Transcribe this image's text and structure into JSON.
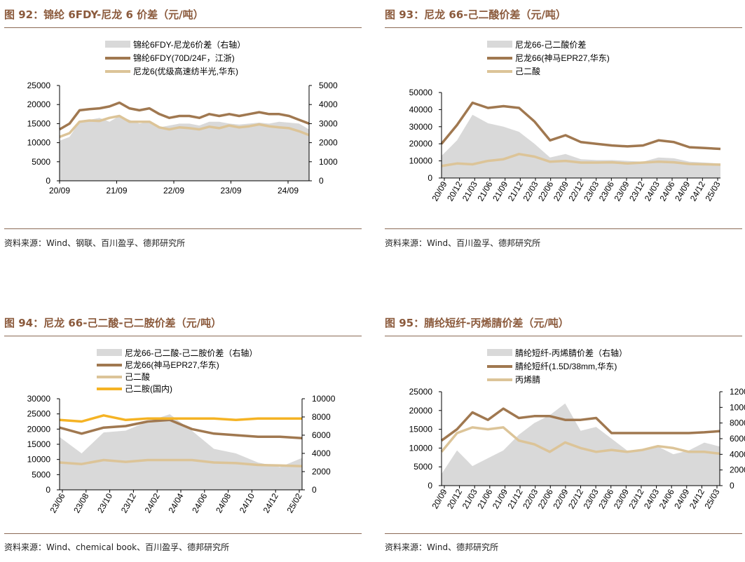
{
  "panels": [
    {
      "id": "p92",
      "title": "图 92：锦纶 6FDY-尼龙 6 价差（元/吨）",
      "source": "资料来源：Wind、钢联、百川盈孚、德邦研究所",
      "chart_data": {
        "type": "area",
        "legend": [
          {
            "label": "锦纶6FDY-尼龙6价差（右轴）",
            "kind": "area",
            "color": "#d9d9d9"
          },
          {
            "label": "锦纶6FDY(70D/24F，江浙)",
            "kind": "line",
            "color": "#a07850"
          },
          {
            "label": "尼龙6(优级高速纺半光,华东)",
            "kind": "line",
            "color": "#dcc498"
          }
        ],
        "x_ticks": [
          "20/09",
          "21/09",
          "22/09",
          "23/09",
          "24/09"
        ],
        "y_left": {
          "min": 0,
          "max": 25000,
          "ticks": [
            0,
            5000,
            10000,
            15000,
            20000,
            25000
          ]
        },
        "y_right": {
          "min": 0,
          "max": 5000,
          "ticks": [
            0,
            1000,
            2000,
            3000,
            4000,
            5000
          ]
        },
        "x_range": [
          0,
          50
        ],
        "series": [
          {
            "name": "锦纶6FDY-尼龙6价差（右轴）",
            "axis": "right",
            "kind": "area",
            "x": [
              0,
              2,
              4,
              6,
              8,
              10,
              12,
              14,
              16,
              18,
              20,
              22,
              24,
              26,
              28,
              30,
              32,
              34,
              36,
              38,
              40,
              42,
              44,
              46,
              48,
              50
            ],
            "y": [
              2100,
              2300,
              3100,
              3200,
              3300,
              3100,
              3400,
              3200,
              3000,
              3100,
              2800,
              2900,
              3000,
              3000,
              2900,
              3100,
              3100,
              3000,
              2950,
              3000,
              3050,
              3000,
              3100,
              3050,
              3000,
              2700
            ]
          },
          {
            "name": "锦纶6FDY(70D/24F，江浙)",
            "axis": "left",
            "kind": "line",
            "x": [
              0,
              2,
              4,
              6,
              8,
              10,
              12,
              14,
              16,
              18,
              20,
              22,
              24,
              26,
              28,
              30,
              32,
              34,
              36,
              38,
              40,
              42,
              44,
              46,
              48,
              50
            ],
            "y": [
              13500,
              15000,
              18500,
              18800,
              19000,
              19500,
              20500,
              19000,
              18500,
              19000,
              17500,
              16500,
              17000,
              17000,
              16500,
              17500,
              17000,
              17500,
              17000,
              17500,
              18000,
              17500,
              17500,
              17000,
              16000,
              15000
            ]
          },
          {
            "name": "尼龙6(优级高速纺半光,华东)",
            "axis": "left",
            "kind": "line",
            "x": [
              0,
              2,
              4,
              6,
              8,
              10,
              12,
              14,
              16,
              18,
              20,
              22,
              24,
              26,
              28,
              30,
              32,
              34,
              36,
              38,
              40,
              42,
              44,
              46,
              48,
              50
            ],
            "y": [
              11500,
              12500,
              15500,
              15800,
              15700,
              16500,
              17000,
              15500,
              15500,
              15500,
              14000,
              13500,
              14000,
              13800,
              13500,
              14200,
              13800,
              14500,
              14000,
              14300,
              14800,
              14300,
              14000,
              13800,
              13000,
              12000
            ]
          }
        ]
      }
    },
    {
      "id": "p93",
      "title": "图 93：尼龙 66-己二酸价差（元/吨）",
      "source": "资料来源：Wind、百川盈孚、德邦研究所",
      "chart_data": {
        "type": "area",
        "legend": [
          {
            "label": "尼龙66-己二酸价差",
            "kind": "area",
            "color": "#d9d9d9"
          },
          {
            "label": "尼龙66(神马EPR27,华东)",
            "kind": "line",
            "color": "#a07850"
          },
          {
            "label": "己二酸",
            "kind": "line",
            "color": "#dcc498"
          }
        ],
        "x_ticks": [
          "20/09",
          "20/12",
          "21/03",
          "21/06",
          "21/09",
          "21/12",
          "22/03",
          "22/06",
          "22/09",
          "22/12",
          "23/03",
          "23/06",
          "23/09",
          "23/12",
          "24/03",
          "24/06",
          "24/09",
          "24/12",
          "25/03"
        ],
        "y_left": {
          "min": 0,
          "max": 50000,
          "ticks": [
            0,
            10000,
            20000,
            30000,
            40000,
            50000
          ]
        },
        "x_range": [
          0,
          54
        ],
        "series": [
          {
            "name": "尼龙66-己二酸价差",
            "axis": "left",
            "kind": "area",
            "x": [
              0,
              3,
              6,
              9,
              12,
              15,
              18,
              21,
              24,
              27,
              30,
              33,
              36,
              39,
              42,
              45,
              48,
              51,
              54
            ],
            "y": [
              13000,
              22000,
              37000,
              32000,
              30000,
              27000,
              20000,
              12000,
              14000,
              11000,
              10500,
              10500,
              10000,
              9500,
              12000,
              11500,
              9500,
              9000,
              8500
            ]
          },
          {
            "name": "尼龙66(神马EPR27,华东)",
            "axis": "left",
            "kind": "line",
            "x": [
              0,
              3,
              6,
              9,
              12,
              15,
              18,
              21,
              24,
              27,
              30,
              33,
              36,
              39,
              42,
              45,
              48,
              51,
              54
            ],
            "y": [
              20000,
              31000,
              44000,
              41000,
              42000,
              41000,
              33000,
              22000,
              25000,
              21000,
              20000,
              19000,
              18500,
              19000,
              22000,
              21000,
              18000,
              17500,
              17000
            ]
          },
          {
            "name": "己二酸",
            "axis": "left",
            "kind": "line",
            "x": [
              0,
              3,
              6,
              9,
              12,
              15,
              18,
              21,
              24,
              27,
              30,
              33,
              36,
              39,
              42,
              45,
              48,
              51,
              54
            ],
            "y": [
              7000,
              8500,
              8000,
              10000,
              11000,
              14000,
              12500,
              9500,
              10000,
              9000,
              9000,
              9200,
              8500,
              9000,
              9500,
              9200,
              8200,
              8000,
              7800
            ]
          }
        ]
      }
    },
    {
      "id": "p94",
      "title": "图 94：尼龙 66-己二酸-己二胺价差（元/吨）",
      "source": "资料来源：Wind、chemical book、百川盈孚、德邦研究所",
      "chart_data": {
        "type": "area",
        "legend": [
          {
            "label": "尼龙66-己二酸-己二胺价差（右轴）",
            "kind": "area",
            "color": "#d9d9d9"
          },
          {
            "label": "尼龙66(神马EPR27,华东)",
            "kind": "line",
            "color": "#a07850"
          },
          {
            "label": "己二酸",
            "kind": "line",
            "color": "#dcc498"
          },
          {
            "label": "己二胺(国内)",
            "kind": "line",
            "color": "#f5b324"
          }
        ],
        "x_ticks": [
          "23/06",
          "23/08",
          "23/10",
          "23/12",
          "24/02",
          "24/04",
          "24/06",
          "24/08",
          "24/10",
          "24/12",
          "25/02"
        ],
        "y_left": {
          "min": 0,
          "max": 30000,
          "ticks": [
            0,
            5000,
            10000,
            15000,
            20000,
            25000,
            30000
          ]
        },
        "y_right": {
          "min": 0,
          "max": 10000,
          "ticks": [
            0,
            2000,
            4000,
            6000,
            8000,
            10000
          ]
        },
        "x_range": [
          0,
          22
        ],
        "series": [
          {
            "name": "尼龙66-己二酸-己二胺价差（右轴）",
            "axis": "right",
            "kind": "area",
            "x": [
              0,
              2,
              4,
              6,
              8,
              10,
              12,
              14,
              16,
              18,
              20,
              22
            ],
            "y": [
              5800,
              4000,
              6300,
              6500,
              7500,
              8300,
              6500,
              4500,
              4000,
              3000,
              2500,
              3500
            ]
          },
          {
            "name": "尼龙66(神马EPR27,华东)",
            "axis": "left",
            "kind": "line",
            "x": [
              0,
              2,
              4,
              6,
              8,
              10,
              12,
              14,
              16,
              18,
              20,
              22
            ],
            "y": [
              20500,
              18500,
              20500,
              21000,
              22500,
              23000,
              20000,
              18500,
              18000,
              17500,
              17500,
              17000
            ]
          },
          {
            "name": "己二酸",
            "axis": "left",
            "kind": "line",
            "x": [
              0,
              2,
              4,
              6,
              8,
              10,
              12,
              14,
              16,
              18,
              20,
              22
            ],
            "y": [
              9000,
              8500,
              9800,
              9200,
              9800,
              9800,
              9800,
              9000,
              8800,
              8200,
              8000,
              7800
            ]
          },
          {
            "name": "己二胺(国内)",
            "axis": "left",
            "kind": "line",
            "x": [
              0,
              2,
              4,
              6,
              8,
              10,
              12,
              14,
              16,
              18,
              20,
              22
            ],
            "y": [
              23000,
              22500,
              24500,
              23000,
              23500,
              23500,
              23500,
              23500,
              23000,
              23500,
              23500,
              23500
            ]
          }
        ]
      }
    },
    {
      "id": "p95",
      "title": "图 95：腈纶短纤-丙烯腈价差（元/吨）",
      "source": "资料来源：Wind、德邦研究所",
      "chart_data": {
        "type": "area",
        "legend": [
          {
            "label": "腈纶短纤-丙烯腈价差（右轴）",
            "kind": "area",
            "color": "#d9d9d9"
          },
          {
            "label": "腈纶短纤(1.5D/38mm,华东)",
            "kind": "line",
            "color": "#a07850"
          },
          {
            "label": "丙烯腈",
            "kind": "line",
            "color": "#dcc498"
          }
        ],
        "x_ticks": [
          "20/09",
          "20/12",
          "21/03",
          "21/06",
          "21/09",
          "21/12",
          "22/03",
          "22/06",
          "22/09",
          "22/12",
          "23/03",
          "23/06",
          "23/09",
          "23/12",
          "24/03",
          "24/06",
          "24/09",
          "24/12",
          "25/03"
        ],
        "y_left": {
          "min": 0,
          "max": 25000,
          "ticks": [
            0,
            5000,
            10000,
            15000,
            20000,
            25000
          ]
        },
        "y_right": {
          "min": 0,
          "max": 12000,
          "ticks": [
            0,
            2000,
            4000,
            6000,
            8000,
            10000,
            12000
          ]
        },
        "x_range": [
          0,
          54
        ],
        "series": [
          {
            "name": "腈纶短纤-丙烯腈价差（右轴）",
            "axis": "right",
            "kind": "area",
            "x": [
              0,
              3,
              6,
              9,
              12,
              15,
              18,
              21,
              24,
              27,
              30,
              33,
              36,
              39,
              42,
              45,
              48,
              51,
              54
            ],
            "y": [
              1500,
              4500,
              2500,
              3500,
              4500,
              6500,
              8000,
              9000,
              10500,
              7000,
              7500,
              6000,
              4500,
              4500,
              5000,
              4000,
              4500,
              5500,
              5000
            ]
          },
          {
            "name": "腈纶短纤(1.5D/38mm,华东)",
            "axis": "left",
            "kind": "line",
            "x": [
              0,
              3,
              6,
              9,
              12,
              15,
              18,
              21,
              24,
              27,
              30,
              33,
              36,
              39,
              42,
              45,
              48,
              51,
              54
            ],
            "y": [
              12000,
              15000,
              19500,
              17500,
              20500,
              18000,
              18500,
              18500,
              17500,
              17500,
              18000,
              14000,
              14000,
              14000,
              14000,
              14000,
              14000,
              14200,
              14500
            ]
          },
          {
            "name": "丙烯腈",
            "axis": "left",
            "kind": "line",
            "x": [
              0,
              3,
              6,
              9,
              12,
              15,
              18,
              21,
              24,
              27,
              30,
              33,
              36,
              39,
              42,
              45,
              48,
              51,
              54
            ],
            "y": [
              9000,
              14000,
              15500,
              15000,
              15500,
              12000,
              11000,
              9000,
              11500,
              10000,
              9000,
              9500,
              9000,
              9500,
              10500,
              10000,
              9000,
              9000,
              8500
            ]
          }
        ]
      }
    }
  ]
}
